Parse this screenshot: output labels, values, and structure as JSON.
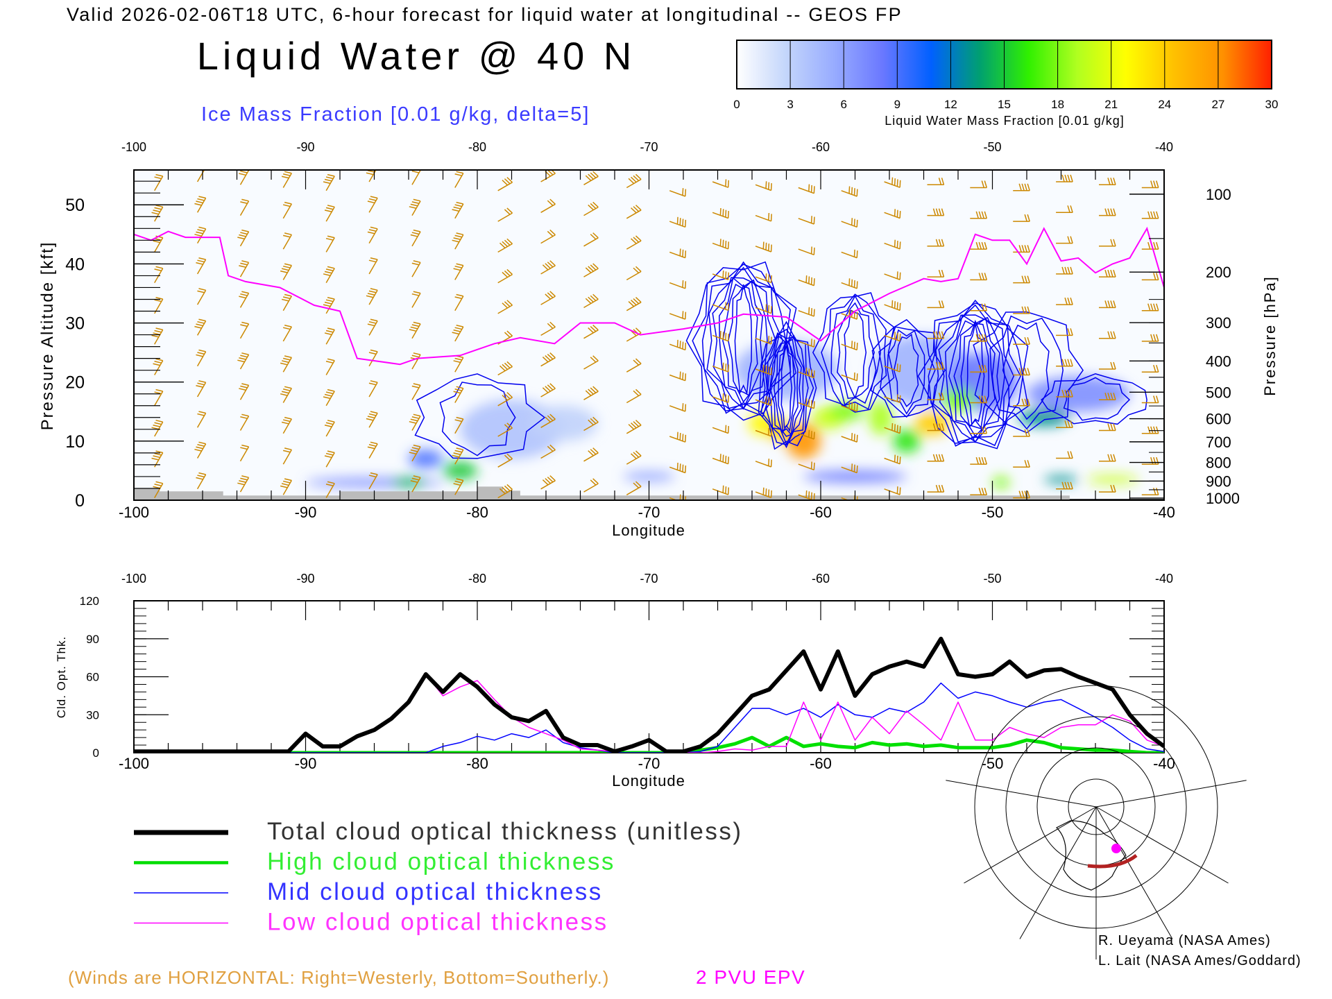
{
  "header": {
    "title": "Valid 2026-02-06T18 UTC, 6-hour forecast for liquid water at longitudinal -- GEOS FP",
    "main_title": "Liquid Water @ 40 N",
    "subtitle": "Ice Mass Fraction [0.01 g/kg, delta=5]"
  },
  "colorbar": {
    "ticks": [
      "0",
      "3",
      "6",
      "9",
      "12",
      "15",
      "18",
      "21",
      "24",
      "27",
      "30"
    ],
    "label": "Liquid Water Mass Fraction [0.01 g/kg]",
    "colors": [
      "#ffffff",
      "#c4d6fb",
      "#98acff",
      "#6a78ff",
      "#0060ff",
      "#00a070",
      "#30f000",
      "#b0ff20",
      "#ffff00",
      "#ffc000",
      "#ff9000",
      "#ff2000"
    ]
  },
  "chart_data": [
    {
      "type": "heatmap",
      "name": "liquid-water-cross-section",
      "xlabel": "Longitude",
      "ylabel": "Pressure Altitude [kft]",
      "y2label": "Pressure [hPa]",
      "xlim": [
        -100,
        -40
      ],
      "ylim": [
        0,
        55.9
      ],
      "xticks": [
        "-100",
        "-90",
        "-80",
        "-70",
        "-60",
        "-50",
        "-40"
      ],
      "yticks": [
        "0",
        "10",
        "20",
        "30",
        "40",
        "50"
      ],
      "pressure_ticks": [
        "100",
        "200",
        "300",
        "400",
        "500",
        "600",
        "700",
        "800",
        "900",
        "1000"
      ],
      "colors": {
        "wind": "#cc8800",
        "ice": "#0000ee",
        "epv": "#ff00ff",
        "terrain": "#bbbbbb"
      },
      "epv_line": [
        [
          -100,
          45
        ],
        [
          -99,
          44
        ],
        [
          -98,
          45.5
        ],
        [
          -97,
          44.5
        ],
        [
          -95,
          44.5
        ],
        [
          -94.5,
          38
        ],
        [
          -93.5,
          37
        ],
        [
          -91.5,
          36
        ],
        [
          -89.5,
          33
        ],
        [
          -88,
          32
        ],
        [
          -87,
          24
        ],
        [
          -84.5,
          23
        ],
        [
          -83.5,
          24
        ],
        [
          -81,
          24.5
        ],
        [
          -79,
          26.5
        ],
        [
          -77.5,
          27.5
        ],
        [
          -75.5,
          26.5
        ],
        [
          -74,
          30
        ],
        [
          -72,
          30
        ],
        [
          -70.5,
          28
        ],
        [
          -68,
          29
        ],
        [
          -66,
          30
        ],
        [
          -64.5,
          31.5
        ],
        [
          -62,
          31
        ],
        [
          -60,
          27
        ],
        [
          -58,
          32
        ],
        [
          -56,
          35
        ],
        [
          -54,
          37.5
        ],
        [
          -53,
          37
        ],
        [
          -52,
          37.5
        ],
        [
          -51,
          45
        ],
        [
          -50,
          44
        ],
        [
          -49,
          44
        ],
        [
          -48,
          40
        ],
        [
          -47,
          46
        ],
        [
          -46,
          40.5
        ],
        [
          -45,
          41
        ],
        [
          -44,
          38.5
        ],
        [
          -43,
          40
        ],
        [
          -42,
          41
        ],
        [
          -41,
          46
        ],
        [
          -40,
          36
        ]
      ],
      "terrain": [
        [
          -100,
          2
        ],
        [
          -98.5,
          2
        ],
        [
          -98.5,
          1.5
        ],
        [
          -94.8,
          1.5
        ],
        [
          -94.8,
          0.8
        ],
        [
          -88,
          0.8
        ],
        [
          -88,
          1.5
        ],
        [
          -80,
          1.5
        ],
        [
          -80,
          2.3
        ],
        [
          -78.5,
          2.3
        ],
        [
          -78.5,
          1.6
        ],
        [
          -77.5,
          1.6
        ],
        [
          -77.5,
          0.8
        ],
        [
          -45.5,
          0.8
        ],
        [
          -45.5,
          0.2
        ],
        [
          -40,
          0.2
        ]
      ],
      "liquid_water_blobs": [
        [
          -86,
          3,
          4,
          0.8,
          7
        ],
        [
          -84,
          3,
          1,
          0.8,
          14
        ],
        [
          -83,
          7,
          1,
          1.5,
          9
        ],
        [
          -81,
          5,
          1,
          1.5,
          15
        ],
        [
          -78,
          12,
          3,
          5,
          4
        ],
        [
          -75,
          13,
          2,
          3,
          3
        ],
        [
          -70,
          4,
          1.5,
          0.8,
          6
        ],
        [
          -62,
          22,
          3,
          5,
          5
        ],
        [
          -54,
          22,
          3,
          6,
          5
        ],
        [
          -45,
          18,
          3,
          3,
          7
        ],
        [
          -50.5,
          20,
          2,
          5,
          8
        ],
        [
          -58,
          4,
          3,
          1,
          8
        ],
        [
          -63.5,
          13,
          0.7,
          2,
          22
        ],
        [
          -62.5,
          12,
          0.6,
          2,
          24
        ],
        [
          -61,
          10,
          1,
          3,
          27
        ],
        [
          -59.5,
          14,
          1,
          2,
          20
        ],
        [
          -58.5,
          15,
          1,
          1.5,
          18
        ],
        [
          -56.5,
          14,
          0.7,
          3,
          19
        ],
        [
          -55,
          10,
          0.8,
          2,
          16
        ],
        [
          -53.5,
          13,
          1,
          2,
          24
        ],
        [
          -52,
          17,
          1,
          2,
          18
        ],
        [
          -47,
          14,
          1.5,
          1.5,
          13
        ],
        [
          -49.5,
          3,
          0.5,
          1,
          18
        ],
        [
          -46,
          3.5,
          1,
          0.7,
          13
        ],
        [
          -43,
          3.5,
          1.5,
          0.7,
          20
        ]
      ],
      "ice_contours": [
        [
          -64.5,
          27,
          3,
          13,
          9
        ],
        [
          -62,
          19,
          1.6,
          10,
          8
        ],
        [
          -58,
          25,
          2.2,
          10,
          5
        ],
        [
          -55,
          22,
          2,
          8,
          4
        ],
        [
          -51,
          21,
          3,
          12,
          9
        ],
        [
          -48,
          22,
          3,
          10,
          3
        ],
        [
          -80,
          14,
          3.5,
          7,
          2
        ],
        [
          -44,
          17,
          3,
          4,
          2
        ]
      ]
    },
    {
      "type": "line",
      "name": "cloud-optical-thickness",
      "xlabel": "Longitude",
      "ylabel": "Cld. Opt. Thk.",
      "xlim": [
        -100,
        -40
      ],
      "ylim": [
        0,
        120
      ],
      "xticks": [
        "-100",
        "-90",
        "-80",
        "-70",
        "-60",
        "-50",
        "-40"
      ],
      "yticks": [
        "0",
        "30",
        "60",
        "90",
        "120"
      ],
      "x": [
        -100,
        -99,
        -98,
        -97,
        -96,
        -95,
        -94,
        -93,
        -92,
        -91,
        -90,
        -89,
        -88,
        -87,
        -86,
        -85,
        -84,
        -83,
        -82,
        -81,
        -80,
        -79,
        -78,
        -77,
        -76,
        -75,
        -74,
        -73,
        -72,
        -71,
        -70,
        -69,
        -68,
        -67,
        -66,
        -65,
        -64,
        -63,
        -62,
        -61,
        -60,
        -59,
        -58,
        -57,
        -56,
        -55,
        -54,
        -53,
        -52,
        -51,
        -50,
        -49,
        -48,
        -47,
        -46,
        -45,
        -44,
        -43,
        -42,
        -41,
        -40
      ],
      "series": [
        {
          "name": "Total cloud optical thickness (unitless)",
          "color": "#000000",
          "values": [
            1,
            1,
            1,
            1,
            1,
            1,
            1,
            1,
            1,
            1,
            15,
            5,
            5,
            13,
            18,
            27,
            40,
            62,
            48,
            62,
            52,
            38,
            28,
            25,
            33,
            12,
            6,
            6,
            1,
            5,
            10,
            1,
            1,
            5,
            15,
            30,
            45,
            50,
            65,
            80,
            50,
            80,
            45,
            62,
            68,
            72,
            68,
            90,
            62,
            60,
            62,
            72,
            60,
            65,
            66,
            60,
            55,
            50,
            30,
            15,
            5
          ]
        },
        {
          "name": "High cloud optical thickness",
          "color": "#00e000",
          "values": [
            0,
            0,
            0,
            0,
            0,
            0,
            0,
            0,
            0,
            0,
            0,
            0,
            0,
            0,
            0,
            0,
            0,
            0,
            0,
            0,
            0,
            0,
            0,
            0,
            0,
            0,
            0,
            0,
            0,
            0,
            0,
            0,
            0,
            2,
            4,
            7,
            12,
            5,
            12,
            5,
            7,
            5,
            4,
            8,
            6,
            7,
            5,
            6,
            4,
            4,
            4,
            6,
            10,
            8,
            4,
            3,
            2,
            2,
            1,
            0,
            0
          ]
        },
        {
          "name": "Mid cloud optical thickness",
          "color": "#0000ff",
          "values": [
            0,
            0,
            0,
            0,
            0,
            0,
            0,
            0,
            0,
            0,
            0,
            0,
            0,
            0,
            0,
            0,
            0,
            0,
            5,
            8,
            13,
            10,
            15,
            12,
            18,
            8,
            4,
            2,
            0,
            0,
            0,
            0,
            0,
            1,
            5,
            20,
            35,
            35,
            30,
            35,
            28,
            38,
            30,
            28,
            35,
            32,
            40,
            55,
            43,
            48,
            45,
            40,
            36,
            40,
            42,
            35,
            28,
            20,
            10,
            3,
            1
          ]
        },
        {
          "name": "Low cloud optical thickness",
          "color": "#ff00ff",
          "values": [
            0,
            0,
            0,
            0,
            0,
            0,
            0,
            0,
            0,
            0,
            15,
            5,
            5,
            13,
            18,
            27,
            40,
            62,
            45,
            52,
            57,
            42,
            28,
            20,
            15,
            10,
            3,
            2,
            1,
            5,
            10,
            0,
            0,
            0,
            1,
            3,
            2,
            5,
            5,
            40,
            10,
            40,
            10,
            28,
            15,
            33,
            22,
            10,
            40,
            10,
            10,
            20,
            15,
            12,
            20,
            22,
            22,
            30,
            25,
            10,
            5
          ]
        }
      ]
    }
  ],
  "legend": {
    "items": [
      {
        "label": "Total cloud optical thickness (unitless)",
        "color": "#000000",
        "text_color": "#333333"
      },
      {
        "label": "High cloud optical thickness",
        "color": "#00dd00",
        "text_color": "#33ee33"
      },
      {
        "label": "Mid cloud optical thickness",
        "color": "#0000ff",
        "text_color": "#3333ff"
      },
      {
        "label": "Low cloud optical thickness",
        "color": "#ff00ff",
        "text_color": "#ff33ff"
      }
    ]
  },
  "footer": {
    "winds_note": "(Winds are HORIZONTAL: Right=Westerly, Bottom=Southerly.)",
    "epv_label": "2 PVU EPV",
    "credits": [
      "R. Ueyama (NASA Ames)",
      "L. Lait (NASA Ames/Goddard)"
    ]
  }
}
